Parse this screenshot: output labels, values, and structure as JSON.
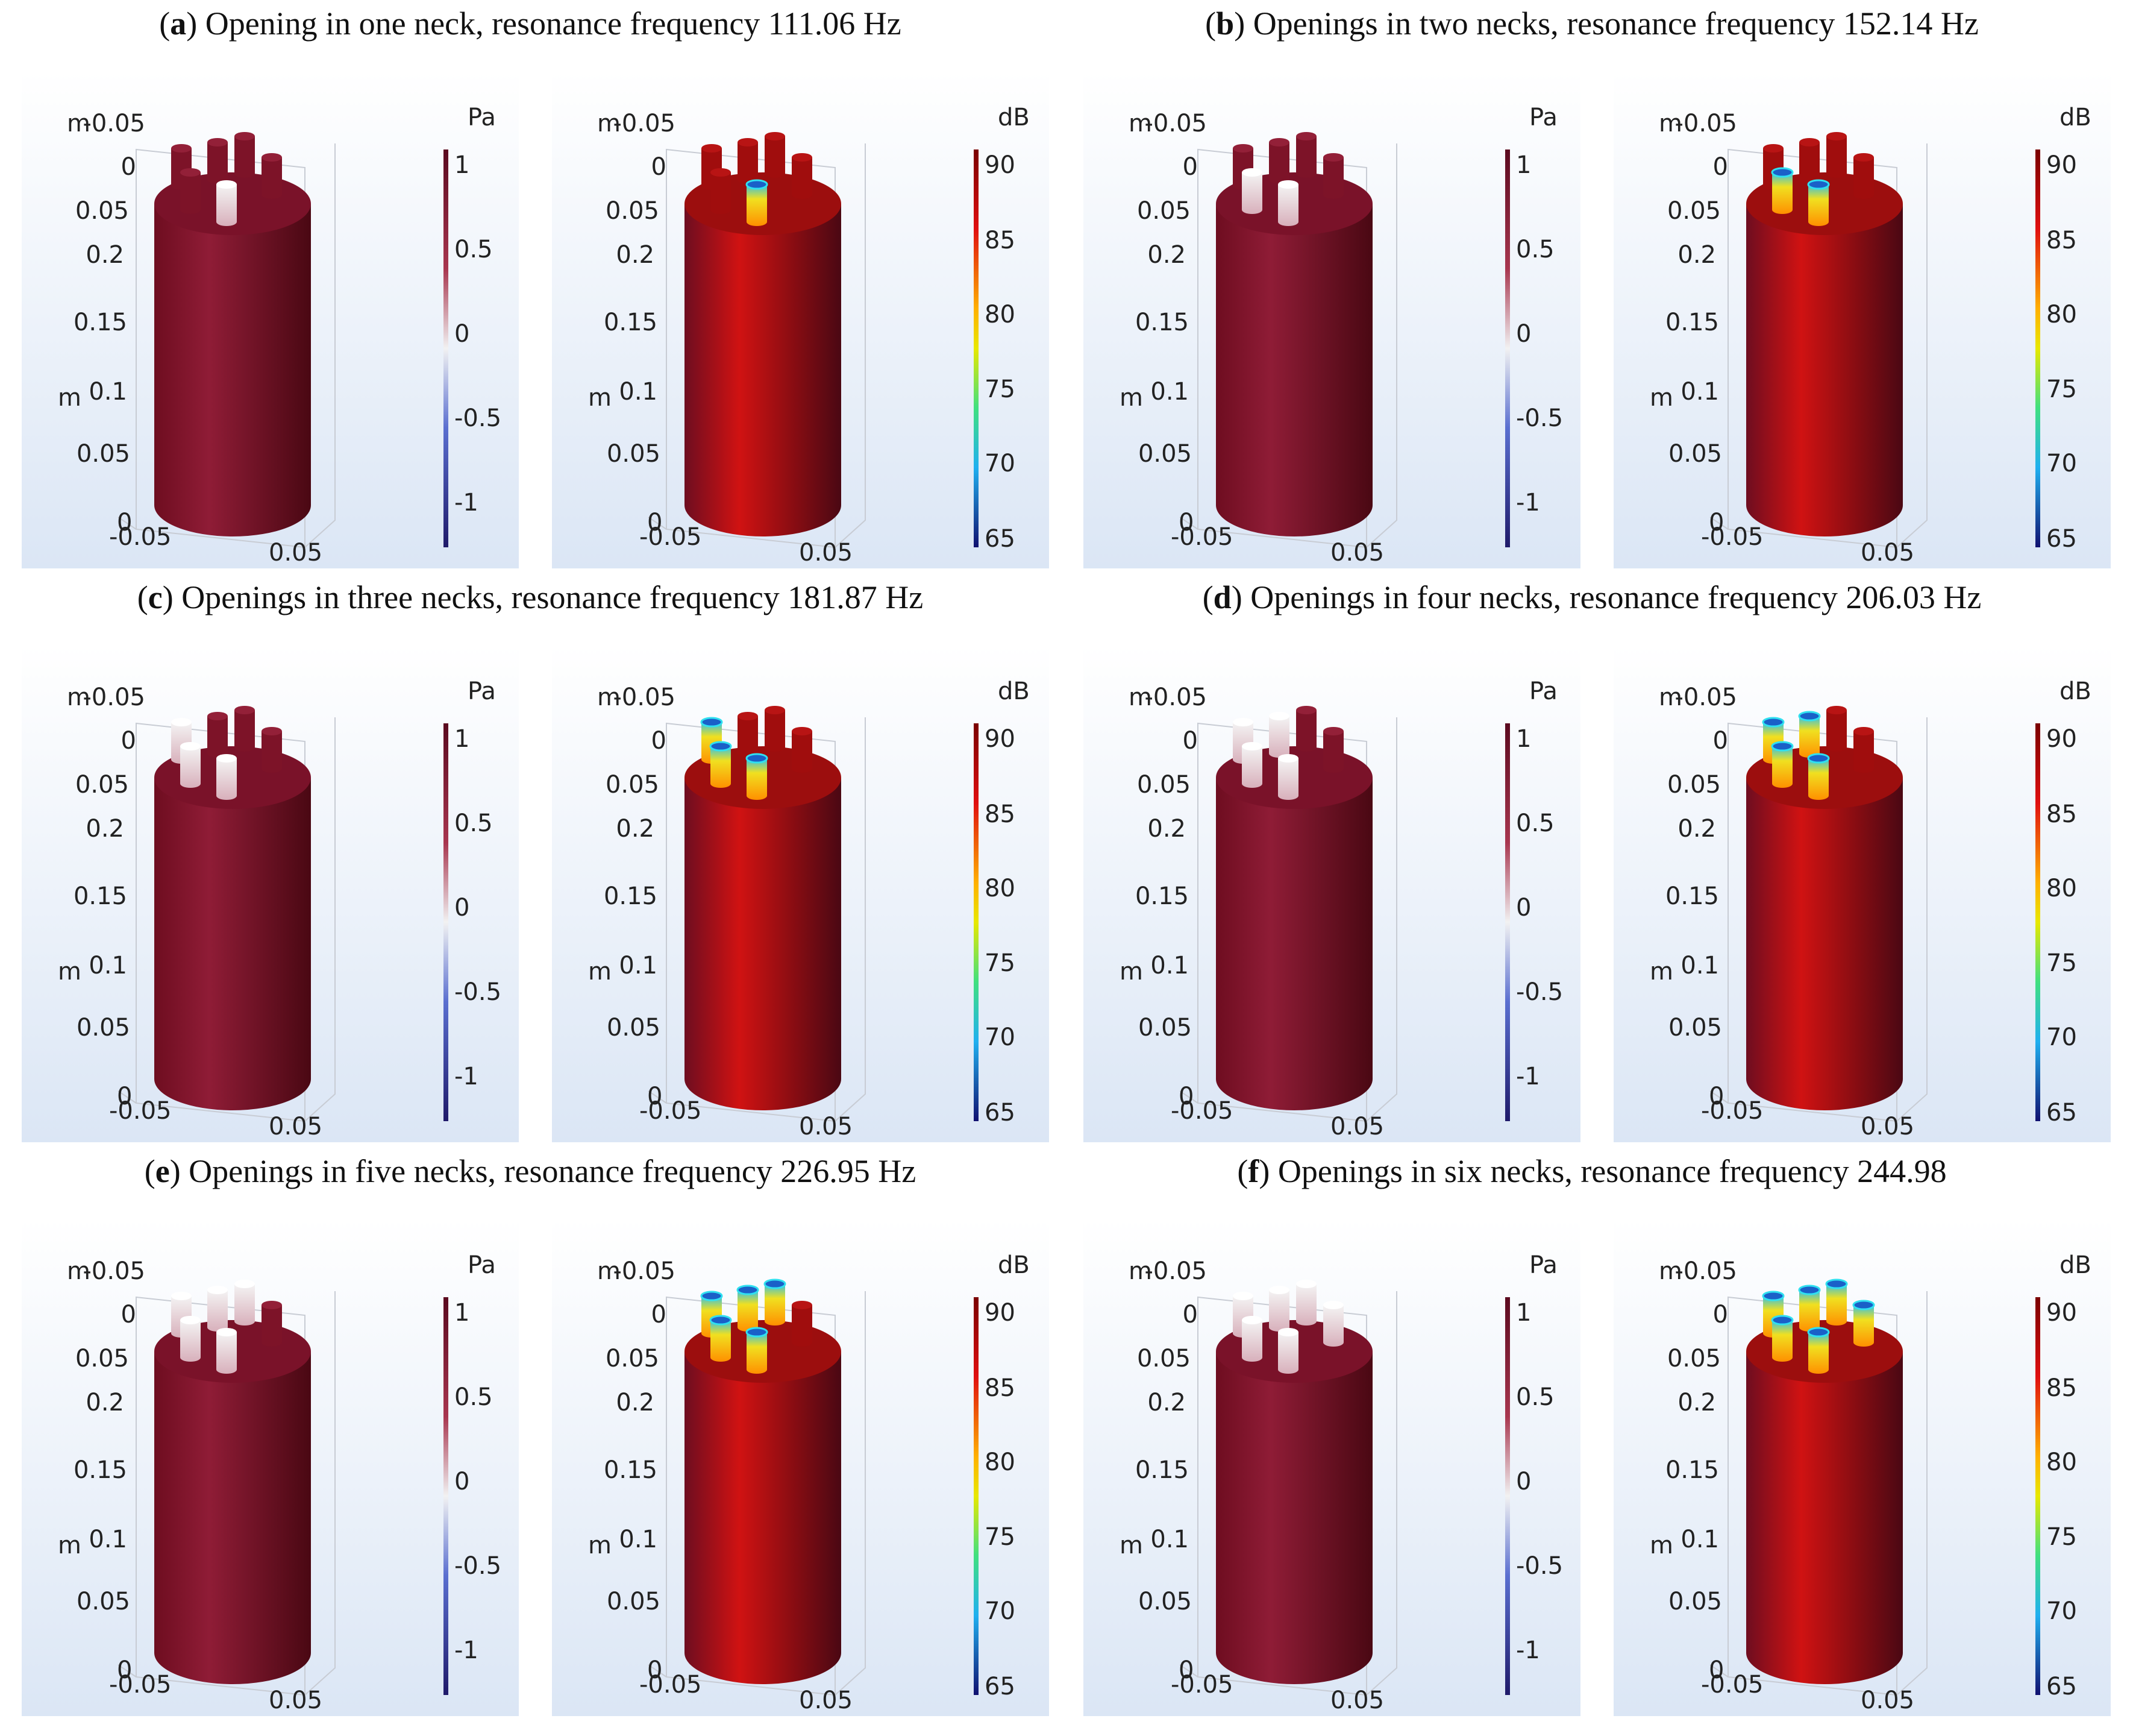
{
  "colors": {
    "bg_top": "#ffffff",
    "bg_bottom": "#dbe6f5",
    "body_pa": "#8f1c36",
    "body_db": "#d01212",
    "colorbar_top": "#5b0a1f",
    "colorbar_bottom": "#1f1a6a"
  },
  "panels": [
    {
      "letter": "a",
      "text": "Opening in one neck, resonance frequency 111.06 Hz",
      "open": 1
    },
    {
      "letter": "b",
      "text": "Openings in two necks, resonance frequency 152.14 Hz",
      "open": 2
    },
    {
      "letter": "c",
      "text": "Openings in three necks, resonance frequency 181.87 Hz",
      "open": 3
    },
    {
      "letter": "d",
      "text": "Openings in four necks, resonance frequency 206.03 Hz",
      "open": 4
    },
    {
      "letter": "e",
      "text": "Openings in five necks, resonance frequency 226.95 Hz",
      "open": 5
    },
    {
      "letter": "f",
      "text": "Openings in six necks, resonance frequency 244.98",
      "open": 6
    }
  ],
  "axes": {
    "unit_label": "m",
    "y_ticks_top": [
      "-0.05",
      "0",
      "0.05"
    ],
    "z_ticks": [
      "0.2",
      "0.15",
      "0.1",
      "0.05",
      "0"
    ],
    "x_ticks": [
      "-0.05",
      "0.05"
    ]
  },
  "pressure_plot": {
    "unit": "Pa",
    "ticks": [
      "1",
      "0.5",
      "0",
      "-0.5",
      "-1"
    ]
  },
  "spl_plot": {
    "unit": "dB",
    "ticks": [
      "90",
      "85",
      "80",
      "75",
      "70",
      "65"
    ]
  }
}
